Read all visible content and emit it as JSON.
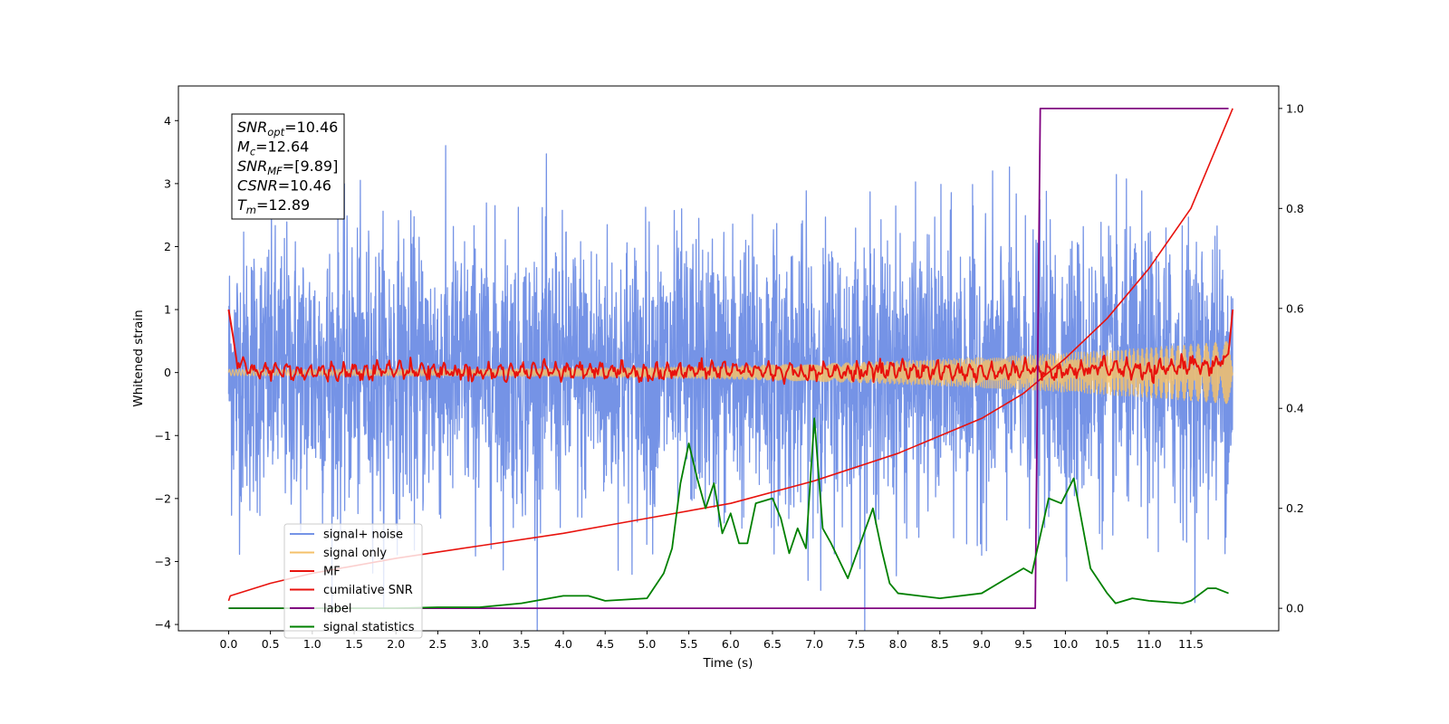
{
  "chart_data": {
    "type": "line",
    "xlabel": "Time (s)",
    "ylabel": "Whitened strain",
    "y2label": "",
    "xlim": [
      -0.6,
      12.55
    ],
    "ylim": [
      -4.1,
      4.55
    ],
    "y2lim": [
      -0.045,
      1.045
    ],
    "x_ticks": [
      "0.0",
      "0.5",
      "1.0",
      "1.5",
      "2.0",
      "2.5",
      "3.0",
      "3.5",
      "4.0",
      "4.5",
      "5.0",
      "5.5",
      "6.0",
      "6.5",
      "7.0",
      "7.5",
      "8.0",
      "8.5",
      "9.0",
      "9.5",
      "10.0",
      "10.5",
      "11.0",
      "11.5"
    ],
    "y_ticks": [
      "4",
      "3",
      "2",
      "1",
      "0",
      "−1",
      "−2",
      "−3",
      "−4"
    ],
    "y2_ticks": [
      "1.0",
      "0.8",
      "0.6",
      "0.4",
      "0.2",
      "0.0"
    ],
    "grid": false,
    "legend_position": "lower-left",
    "annotation": [
      {
        "base": "SNR",
        "sub": "opt",
        "value": "=10.46"
      },
      {
        "base": "M",
        "sub": "c",
        "value": "=12.64"
      },
      {
        "base": "SNR",
        "sub": "MF",
        "value": "=[9.89]"
      },
      {
        "base": "CSNR",
        "sub": "",
        "value": "=10.46"
      },
      {
        "base": "T",
        "sub": "m",
        "value": "=12.89"
      }
    ],
    "series": [
      {
        "name": "signal+ noise",
        "color": "#7593e6",
        "axis": "left",
        "kind": "noise_band",
        "x_range": [
          0.0,
          12.0
        ],
        "typical_amplitude": 1.1,
        "peak_amplitude": 4.1
      },
      {
        "name": "signal only",
        "color": "#f4c16a",
        "axis": "left",
        "kind": "chirp",
        "x_range": [
          0.0,
          12.0
        ],
        "amplitude_start": 0.05,
        "amplitude_end": 0.5
      },
      {
        "name": "MF",
        "color": "#e8120d",
        "axis": "left",
        "x": [
          0.0,
          0.05,
          0.1,
          0.2,
          0.3,
          0.5,
          1.0,
          2.0,
          3.0,
          4.0,
          5.0,
          6.0,
          7.0,
          8.0,
          9.0,
          9.5,
          10.0,
          10.5,
          11.0,
          11.5,
          11.8,
          11.95,
          12.0
        ],
        "y": [
          1.0,
          0.6,
          0.15,
          0.1,
          0.0,
          0.05,
          0.0,
          0.05,
          0.0,
          0.05,
          0.0,
          0.05,
          0.0,
          0.05,
          0.0,
          0.05,
          0.0,
          0.1,
          0.0,
          0.15,
          0.1,
          0.3,
          1.0
        ]
      },
      {
        "name": "cumilative SNR",
        "color": "#e8120d",
        "axis": "right",
        "x": [
          0.0,
          0.02,
          0.5,
          1.0,
          2.0,
          3.0,
          4.0,
          5.0,
          6.0,
          7.0,
          8.0,
          9.0,
          9.5,
          10.0,
          10.5,
          11.0,
          11.5,
          12.0
        ],
        "y": [
          0.015,
          0.025,
          0.05,
          0.07,
          0.1,
          0.125,
          0.15,
          0.18,
          0.21,
          0.255,
          0.31,
          0.38,
          0.43,
          0.5,
          0.58,
          0.68,
          0.8,
          1.0
        ]
      },
      {
        "name": "label",
        "color": "#800080",
        "axis": "right",
        "x": [
          0.0,
          9.64,
          9.7,
          11.95
        ],
        "y": [
          0.0,
          0.0,
          1.0,
          1.0
        ]
      },
      {
        "name": "signal statistics",
        "color": "#008000",
        "axis": "right",
        "x": [
          0.0,
          1.0,
          2.0,
          2.5,
          3.0,
          3.5,
          4.0,
          4.3,
          4.5,
          5.0,
          5.2,
          5.3,
          5.4,
          5.5,
          5.6,
          5.7,
          5.8,
          5.9,
          6.0,
          6.1,
          6.2,
          6.3,
          6.5,
          6.6,
          6.7,
          6.8,
          6.9,
          7.0,
          7.1,
          7.2,
          7.4,
          7.7,
          7.8,
          7.9,
          8.0,
          8.5,
          9.0,
          9.3,
          9.5,
          9.6,
          9.8,
          9.95,
          10.1,
          10.2,
          10.3,
          10.5,
          10.6,
          10.8,
          11.0,
          11.4,
          11.5,
          11.7,
          11.8,
          11.95
        ],
        "y": [
          0.0,
          0.0,
          0.0,
          0.002,
          0.002,
          0.01,
          0.025,
          0.025,
          0.015,
          0.02,
          0.07,
          0.12,
          0.25,
          0.33,
          0.26,
          0.2,
          0.25,
          0.15,
          0.19,
          0.13,
          0.13,
          0.21,
          0.22,
          0.18,
          0.11,
          0.16,
          0.12,
          0.38,
          0.16,
          0.13,
          0.06,
          0.2,
          0.12,
          0.05,
          0.03,
          0.02,
          0.03,
          0.06,
          0.08,
          0.07,
          0.22,
          0.21,
          0.26,
          0.17,
          0.08,
          0.03,
          0.01,
          0.02,
          0.015,
          0.01,
          0.015,
          0.04,
          0.04,
          0.03
        ]
      }
    ]
  }
}
